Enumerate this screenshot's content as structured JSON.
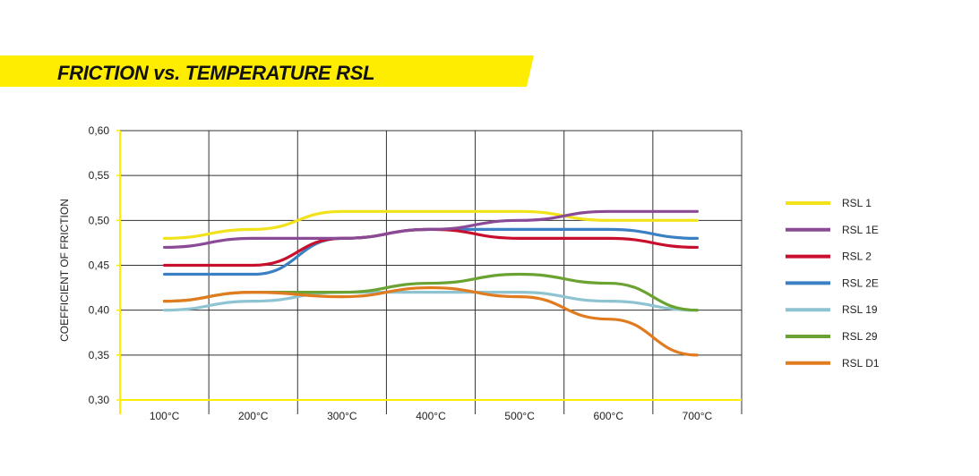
{
  "chart_data": {
    "type": "line",
    "title": "FRICTION vs. TEMPERATURE RSL",
    "xlabel": "",
    "ylabel": "COEFFICIENT OF FRICTION",
    "categories": [
      "100°C",
      "200°C",
      "300°C",
      "400°C",
      "500°C",
      "600°C",
      "700°C"
    ],
    "y_tick_labels": [
      "0,30",
      "0,35",
      "0,40",
      "0,45",
      "0,50",
      "0,55",
      "0,60"
    ],
    "y_ticks": [
      0.3,
      0.35,
      0.4,
      0.45,
      0.5,
      0.55,
      0.6
    ],
    "ylim": [
      0.3,
      0.6
    ],
    "grid": true,
    "legend_position": "right",
    "series": [
      {
        "name": "RSL 1",
        "color": "#f2e21a",
        "values": [
          0.48,
          0.49,
          0.51,
          0.51,
          0.51,
          0.5,
          0.5
        ]
      },
      {
        "name": "RSL 1E",
        "color": "#8a4a96",
        "values": [
          0.47,
          0.48,
          0.48,
          0.49,
          0.5,
          0.51,
          0.51
        ]
      },
      {
        "name": "RSL 2",
        "color": "#c8102e",
        "values": [
          0.45,
          0.45,
          0.48,
          0.49,
          0.48,
          0.48,
          0.47
        ]
      },
      {
        "name": "RSL 2E",
        "color": "#3b7fc4",
        "values": [
          0.44,
          0.44,
          0.48,
          0.49,
          0.49,
          0.49,
          0.48
        ]
      },
      {
        "name": "RSL 19",
        "color": "#8ec3d1",
        "values": [
          0.4,
          0.41,
          0.42,
          0.42,
          0.42,
          0.41,
          0.4
        ]
      },
      {
        "name": "RSL 29",
        "color": "#6aa332",
        "values": [
          0.41,
          0.42,
          0.42,
          0.43,
          0.44,
          0.43,
          0.4
        ]
      },
      {
        "name": "RSL D1",
        "color": "#e07b1f",
        "values": [
          0.41,
          0.42,
          0.415,
          0.425,
          0.415,
          0.39,
          0.35
        ]
      }
    ],
    "colors": {
      "banner": "#ffed00",
      "axis": "#ffed00",
      "grid": "#333333"
    }
  }
}
